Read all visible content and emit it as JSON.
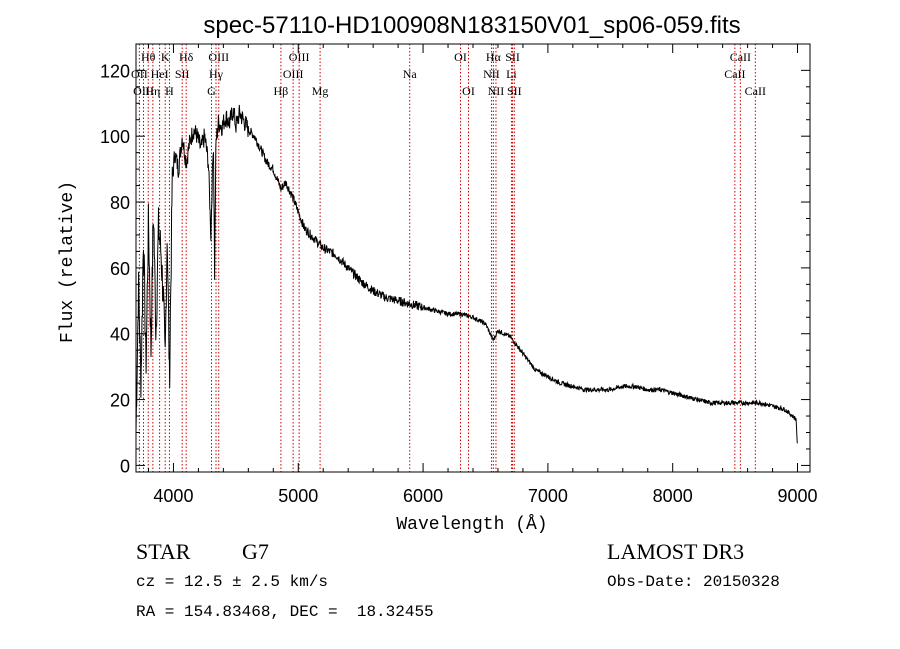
{
  "chart_data": {
    "type": "line",
    "title": "spec-57110-HD100908N183150V01_sp06-059.fits",
    "xlabel": "Wavelength (Å)",
    "ylabel": "Flux (relative)",
    "xlim": [
      3700,
      9100
    ],
    "ylim": [
      -2,
      128
    ],
    "xticks": [
      4000,
      5000,
      6000,
      7000,
      8000,
      9000
    ],
    "xtick_labels": [
      "4000",
      "5000",
      "6000",
      "7000",
      "8000",
      "9000"
    ],
    "yticks": [
      0,
      20,
      40,
      60,
      80,
      100,
      120
    ],
    "ytick_labels": [
      "0",
      "20",
      "40",
      "60",
      "80",
      "100",
      "120"
    ],
    "grid": false,
    "series": [
      {
        "name": "spectrum",
        "x": [
          3700,
          3720,
          3740,
          3760,
          3780,
          3800,
          3820,
          3840,
          3860,
          3880,
          3900,
          3920,
          3933,
          3950,
          3968,
          3990,
          4010,
          4040,
          4070,
          4102,
          4130,
          4160,
          4190,
          4220,
          4250,
          4280,
          4300,
          4320,
          4330,
          4340,
          4360,
          4390,
          4420,
          4450,
          4480,
          4500,
          4530,
          4560,
          4600,
          4650,
          4700,
          4750,
          4800,
          4861,
          4900,
          4950,
          5000,
          5050,
          5100,
          5150,
          5200,
          5250,
          5300,
          5400,
          5500,
          5600,
          5700,
          5800,
          5900,
          6000,
          6100,
          6200,
          6300,
          6400,
          6500,
          6563,
          6600,
          6700,
          6800,
          6900,
          7000,
          7100,
          7200,
          7300,
          7400,
          7500,
          7600,
          7700,
          7800,
          7900,
          8000,
          8100,
          8200,
          8300,
          8400,
          8500,
          8600,
          8700,
          8800,
          8900,
          8990,
          9000
        ],
        "y": [
          10,
          55,
          25,
          70,
          30,
          75,
          35,
          78,
          40,
          72,
          65,
          50,
          30,
          72,
          25,
          85,
          95,
          90,
          100,
          92,
          98,
          102,
          100,
          96,
          100,
          92,
          70,
          100,
          58,
          98,
          104,
          103,
          106,
          104,
          108,
          103,
          107,
          105,
          102,
          100,
          96,
          92,
          90,
          84,
          86,
          82,
          77,
          72,
          70,
          68,
          66,
          65,
          64,
          60,
          56,
          53,
          51,
          50,
          49,
          48,
          47,
          46,
          46,
          45,
          43,
          38,
          41,
          39,
          34,
          29,
          27,
          25,
          24,
          23,
          23,
          23,
          24,
          24,
          23,
          23,
          22,
          21,
          20,
          19,
          19,
          19,
          19,
          19,
          18,
          17,
          14,
          4
        ]
      }
    ],
    "line_color": "#000000",
    "marker_color": "#cc0000",
    "line_markers": [
      {
        "label": "Hθ",
        "x": 3798,
        "row": 1
      },
      {
        "label": "OII",
        "x": 3727,
        "row": 2
      },
      {
        "label": "OIII",
        "x": 3760,
        "row": 3
      },
      {
        "label": "Hη",
        "x": 3835,
        "row": 3
      },
      {
        "label": "K",
        "x": 3934,
        "row": 1
      },
      {
        "label": "HeI",
        "x": 3889,
        "row": 2
      },
      {
        "label": "H",
        "x": 3968,
        "row": 3
      },
      {
        "label": "Hδ",
        "x": 4102,
        "row": 1
      },
      {
        "label": "SII",
        "x": 4070,
        "row": 2
      },
      {
        "label": "OIII",
        "x": 4363,
        "row": 1
      },
      {
        "label": "Hγ",
        "x": 4341,
        "row": 2
      },
      {
        "label": "G",
        "x": 4305,
        "row": 3
      },
      {
        "label": "OIII",
        "x": 5007,
        "row": 1
      },
      {
        "label": "OIII",
        "x": 4959,
        "row": 2
      },
      {
        "label": "Hβ",
        "x": 4861,
        "row": 3
      },
      {
        "label": "Mg",
        "x": 5175,
        "row": 3
      },
      {
        "label": "Na",
        "x": 5893,
        "row": 2
      },
      {
        "label": "OI",
        "x": 6300,
        "row": 1
      },
      {
        "label": "OI",
        "x": 6364,
        "row": 3
      },
      {
        "label": "Hα",
        "x": 6563,
        "row": 1
      },
      {
        "label": "SII",
        "x": 6717,
        "row": 1
      },
      {
        "label": "NII",
        "x": 6548,
        "row": 2
      },
      {
        "label": "Li",
        "x": 6708,
        "row": 2
      },
      {
        "label": "NII",
        "x": 6584,
        "row": 3
      },
      {
        "label": "SII",
        "x": 6731,
        "row": 3
      },
      {
        "label": "CaII",
        "x": 8542,
        "row": 1
      },
      {
        "label": "CaII",
        "x": 8498,
        "row": 2
      },
      {
        "label": "CaII",
        "x": 8662,
        "row": 3
      }
    ]
  },
  "info": {
    "object_class": "STAR",
    "subclass": "G7",
    "survey": "LAMOST DR3",
    "cz": "cz = 12.5 ± 2.5 km/s",
    "obs_date": "Obs-Date: 20150328",
    "coords": "RA = 154.83468, DEC =  18.32455"
  }
}
